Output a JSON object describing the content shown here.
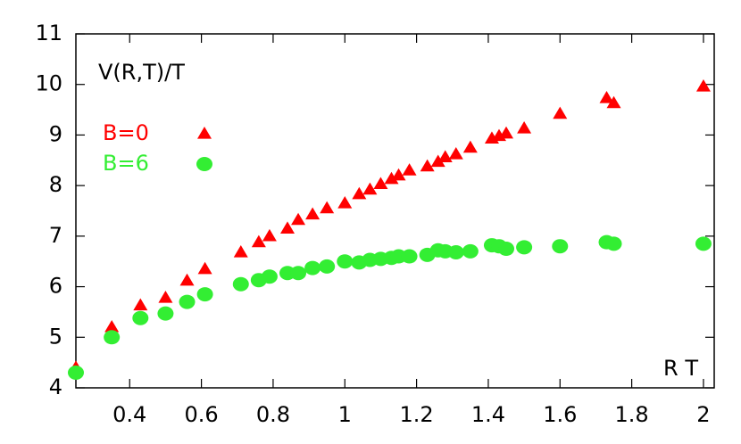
{
  "chart_data": {
    "type": "scatter",
    "y_label": "V(R,T)/T",
    "x_label": "R T",
    "xlim": [
      0.25,
      2.03
    ],
    "ylim": [
      4,
      11
    ],
    "xticks": [
      0.4,
      0.6,
      0.8,
      1,
      1.2,
      1.4,
      1.6,
      1.8,
      2
    ],
    "yticks": [
      4,
      5,
      6,
      7,
      8,
      9,
      10,
      11
    ],
    "grid": false,
    "legend": "upper left",
    "series": [
      {
        "name": "B=0",
        "color": "#ff0000",
        "marker": "triangle",
        "x": [
          0.25,
          0.35,
          0.43,
          0.5,
          0.56,
          0.61,
          0.71,
          0.76,
          0.79,
          0.84,
          0.87,
          0.91,
          0.95,
          1.0,
          1.04,
          1.07,
          1.1,
          1.13,
          1.15,
          1.18,
          1.23,
          1.26,
          1.28,
          1.31,
          1.35,
          1.41,
          1.43,
          1.45,
          1.5,
          1.6,
          1.73,
          1.75,
          2.0
        ],
        "values": [
          4.4,
          5.2,
          5.63,
          5.78,
          6.12,
          6.35,
          6.68,
          6.88,
          7.0,
          7.15,
          7.32,
          7.43,
          7.55,
          7.65,
          7.83,
          7.92,
          8.03,
          8.13,
          8.2,
          8.3,
          8.38,
          8.47,
          8.56,
          8.62,
          8.75,
          8.93,
          8.98,
          9.03,
          9.13,
          9.42,
          9.73,
          9.63,
          9.96
        ]
      },
      {
        "name": "B=6",
        "color": "#33ee33",
        "marker": "circle",
        "x": [
          0.25,
          0.35,
          0.43,
          0.5,
          0.56,
          0.61,
          0.71,
          0.76,
          0.79,
          0.84,
          0.87,
          0.91,
          0.95,
          1.0,
          1.04,
          1.07,
          1.1,
          1.13,
          1.15,
          1.18,
          1.23,
          1.26,
          1.28,
          1.31,
          1.35,
          1.41,
          1.43,
          1.45,
          1.5,
          1.6,
          1.73,
          1.75,
          2.0
        ],
        "values": [
          4.3,
          5.0,
          5.38,
          5.47,
          5.7,
          5.85,
          6.05,
          6.13,
          6.2,
          6.27,
          6.27,
          6.37,
          6.4,
          6.5,
          6.48,
          6.53,
          6.55,
          6.57,
          6.6,
          6.6,
          6.63,
          6.72,
          6.7,
          6.68,
          6.7,
          6.82,
          6.8,
          6.75,
          6.78,
          6.8,
          6.88,
          6.85,
          6.85
        ]
      }
    ]
  }
}
